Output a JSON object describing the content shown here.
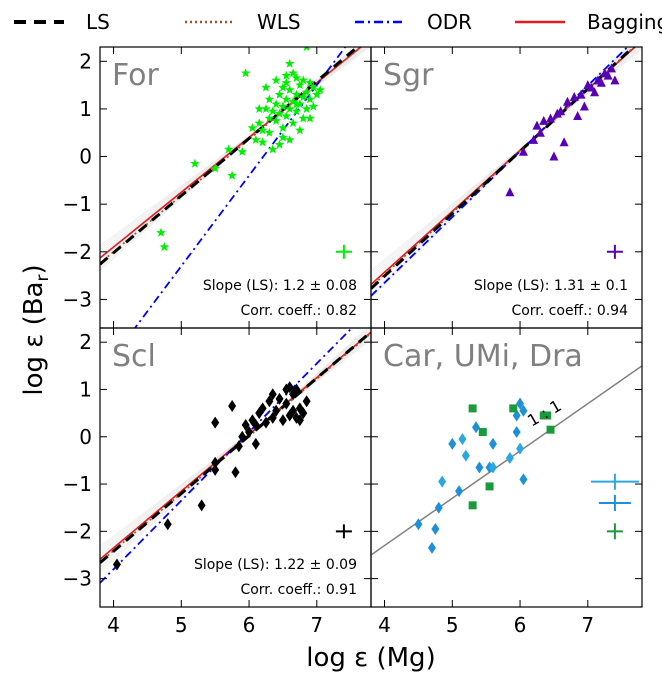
{
  "chart_data": {
    "type": "scatter",
    "xlabel": "log ε (Mg)",
    "ylabel": "log ε (Ba_r)",
    "xlim": [
      3.8,
      7.8
    ],
    "ylim": [
      -3.6,
      2.3
    ],
    "xticks": [
      "4",
      "5",
      "6",
      "7"
    ],
    "yticks": [
      "−3",
      "−2",
      "−1",
      "0",
      "1",
      "2"
    ],
    "legend": {
      "position": "top",
      "entries": [
        {
          "label": "LS",
          "color": "#000000",
          "style": "dashed"
        },
        {
          "label": "WLS",
          "color": "#a0522d",
          "style": "dotted"
        },
        {
          "label": "ODR",
          "color": "#0000ff",
          "style": "dashdot"
        },
        {
          "label": "Bagging",
          "color": "#e41a1c",
          "style": "solid"
        }
      ]
    },
    "panels": [
      {
        "name": "For",
        "color": "#00ee00",
        "marker": "star",
        "stat_slope": "Slope (LS): 1.2 ± 0.08",
        "stat_corr": "Corr. coeff.: 0.82",
        "lines": {
          "ls": [
            1.2,
            -6.82
          ],
          "wls": [
            1.18,
            -6.72
          ],
          "odr": [
            1.9,
            -11.8
          ],
          "bag": [
            1.15,
            -6.5
          ]
        },
        "errbar": {
          "x": 7.4,
          "y": -2.0
        },
        "points": [
          [
            5.2,
            -0.15
          ],
          [
            5.5,
            -0.25
          ],
          [
            5.75,
            -0.4
          ],
          [
            5.9,
            0.1
          ],
          [
            4.7,
            -1.6
          ],
          [
            4.75,
            -1.9
          ],
          [
            5.7,
            0.15
          ],
          [
            6.1,
            0.35
          ],
          [
            6.15,
            0.7
          ],
          [
            6.2,
            0.3
          ],
          [
            6.25,
            1.0
          ],
          [
            6.3,
            0.8
          ],
          [
            6.3,
            1.2
          ],
          [
            6.35,
            0.95
          ],
          [
            6.4,
            1.1
          ],
          [
            6.4,
            0.75
          ],
          [
            6.45,
            1.3
          ],
          [
            6.45,
            0.9
          ],
          [
            6.5,
            1.05
          ],
          [
            6.5,
            0.6
          ],
          [
            6.55,
            1.2
          ],
          [
            6.55,
            0.85
          ],
          [
            6.6,
            1.4
          ],
          [
            6.6,
            1.0
          ],
          [
            6.65,
            0.7
          ],
          [
            6.65,
            1.15
          ],
          [
            6.7,
            1.3
          ],
          [
            6.7,
            0.95
          ],
          [
            6.75,
            1.1
          ],
          [
            6.75,
            1.5
          ],
          [
            6.8,
            1.25
          ],
          [
            6.8,
            0.8
          ],
          [
            6.85,
            1.35
          ],
          [
            6.85,
            1.0
          ],
          [
            6.9,
            1.2
          ],
          [
            6.9,
            1.55
          ],
          [
            6.95,
            1.05
          ],
          [
            7.0,
            1.3
          ],
          [
            7.05,
            1.4
          ],
          [
            6.65,
            1.75
          ],
          [
            6.6,
            1.95
          ],
          [
            6.7,
            1.65
          ],
          [
            6.55,
            1.55
          ],
          [
            6.4,
            1.6
          ],
          [
            6.3,
            0.5
          ],
          [
            6.2,
            0.55
          ],
          [
            6.5,
            0.4
          ],
          [
            6.35,
            0.15
          ],
          [
            6.45,
            0.25
          ],
          [
            6.6,
            0.35
          ],
          [
            5.95,
            1.75
          ],
          [
            6.85,
            2.3
          ],
          [
            6.25,
            1.45
          ],
          [
            6.8,
            1.6
          ],
          [
            6.95,
            1.45
          ],
          [
            6.15,
            1.0
          ],
          [
            6.05,
            0.6
          ],
          [
            6.75,
            0.55
          ],
          [
            6.9,
            0.8
          ],
          [
            6.5,
            1.45
          ],
          [
            6.55,
            1.7
          ],
          [
            6.7,
            1.1
          ]
        ]
      },
      {
        "name": "Sgr",
        "color": "#5a00b4",
        "marker": "triangle",
        "stat_slope": "Slope (LS): 1.31 ± 0.1",
        "stat_corr": "Corr. coeff.: 0.94",
        "lines": {
          "ls": [
            1.31,
            -7.75
          ],
          "wls": [
            1.3,
            -7.68
          ],
          "odr": [
            1.38,
            -8.17
          ],
          "bag": [
            1.28,
            -7.55
          ]
        },
        "errbar": {
          "x": 7.4,
          "y": -2.0
        },
        "points": [
          [
            5.85,
            -0.75
          ],
          [
            6.05,
            0.1
          ],
          [
            6.2,
            0.35
          ],
          [
            6.3,
            0.5
          ],
          [
            6.35,
            0.75
          ],
          [
            6.45,
            0.8
          ],
          [
            6.5,
            0.0
          ],
          [
            6.55,
            0.9
          ],
          [
            6.65,
            0.3
          ],
          [
            6.7,
            1.15
          ],
          [
            6.8,
            1.25
          ],
          [
            6.85,
            0.85
          ],
          [
            6.9,
            1.3
          ],
          [
            6.95,
            1.05
          ],
          [
            7.05,
            1.45
          ],
          [
            7.1,
            1.35
          ],
          [
            7.15,
            1.6
          ],
          [
            7.2,
            1.55
          ],
          [
            7.25,
            1.75
          ],
          [
            7.3,
            1.7
          ],
          [
            7.35,
            1.85
          ],
          [
            7.4,
            1.6
          ],
          [
            6.25,
            0.65
          ],
          [
            6.6,
            0.95
          ],
          [
            7.0,
            1.5
          ]
        ]
      },
      {
        "name": "Scl",
        "color": "#000000",
        "marker": "diamond",
        "stat_slope": "Slope (LS): 1.22 ± 0.09",
        "stat_corr": "Corr. coeff.: 0.91",
        "lines": {
          "ls": [
            1.22,
            -7.3
          ],
          "wls": [
            1.21,
            -7.25
          ],
          "odr": [
            1.45,
            -8.6
          ],
          "bag": [
            1.2,
            -7.15
          ]
        },
        "errbar": {
          "x": 7.4,
          "y": -2.0
        },
        "points": [
          [
            4.05,
            -2.7
          ],
          [
            4.8,
            -1.85
          ],
          [
            5.3,
            -1.45
          ],
          [
            5.5,
            -0.7
          ],
          [
            5.5,
            -0.55
          ],
          [
            5.8,
            -0.75
          ],
          [
            5.5,
            0.3
          ],
          [
            5.85,
            -0.2
          ],
          [
            5.9,
            0.0
          ],
          [
            5.95,
            0.25
          ],
          [
            6.0,
            0.1
          ],
          [
            6.05,
            0.35
          ],
          [
            6.1,
            0.25
          ],
          [
            6.15,
            0.5
          ],
          [
            6.2,
            0.6
          ],
          [
            6.25,
            0.3
          ],
          [
            6.3,
            0.75
          ],
          [
            6.35,
            0.4
          ],
          [
            6.4,
            0.55
          ],
          [
            6.45,
            0.8
          ],
          [
            6.5,
            0.35
          ],
          [
            6.55,
            0.7
          ],
          [
            6.6,
            0.45
          ],
          [
            6.65,
            0.9
          ],
          [
            6.7,
            0.4
          ],
          [
            6.75,
            0.6
          ],
          [
            6.8,
            0.5
          ],
          [
            6.85,
            0.75
          ],
          [
            5.75,
            0.65
          ],
          [
            6.55,
            1.0
          ],
          [
            6.6,
            1.05
          ],
          [
            6.7,
            1.0
          ],
          [
            6.1,
            -0.15
          ],
          [
            6.35,
            0.9
          ],
          [
            6.75,
            0.35
          ],
          [
            6.65,
            0.55
          ]
        ]
      },
      {
        "name": "Car, UMi, Dra",
        "reference_label": "1 : 1",
        "reference_line": [
          1.0,
          -6.3
        ],
        "series": [
          {
            "name": "Car",
            "color": "#1e90d8",
            "marker": "diamond",
            "points": [
              [
                5.35,
                0.2
              ],
              [
                5.6,
                -0.15
              ],
              [
                5.95,
                0.45
              ],
              [
                5.95,
                0.1
              ],
              [
                6.05,
                0.55
              ],
              [
                5.4,
                -0.65
              ],
              [
                5.55,
                -0.65
              ],
              [
                4.8,
                -1.5
              ],
              [
                4.75,
                -1.95
              ],
              [
                4.7,
                -2.35
              ],
              [
                5.0,
                -0.15
              ],
              [
                6.05,
                -0.9
              ],
              [
                4.5,
                -1.85
              ],
              [
                5.1,
                -1.15
              ],
              [
                6.0,
                0.7
              ]
            ]
          },
          {
            "name": "UMi",
            "color": "#2ba8e0",
            "marker": "diamond",
            "points": [
              [
                5.6,
                -0.65
              ],
              [
                5.2,
                -0.4
              ],
              [
                5.15,
                -0.05
              ],
              [
                6.0,
                -0.25
              ],
              [
                4.85,
                -0.95
              ],
              [
                5.85,
                -0.45
              ]
            ]
          },
          {
            "name": "Dra",
            "color": "#1a9a3a",
            "marker": "square",
            "points": [
              [
                5.45,
                0.1
              ],
              [
                5.3,
                0.6
              ],
              [
                5.55,
                -1.05
              ],
              [
                5.3,
                -1.45
              ],
              [
                5.9,
                0.6
              ],
              [
                6.35,
                0.45
              ],
              [
                6.4,
                0.45
              ],
              [
                6.45,
                0.15
              ]
            ]
          }
        ],
        "errbars": [
          {
            "color": "#2ba8e0",
            "x": 7.4,
            "y": -0.95
          },
          {
            "color": "#1e90d8",
            "x": 7.4,
            "y": -1.4
          },
          {
            "color": "#1a9a3a",
            "x": 7.4,
            "y": -2.0
          }
        ]
      }
    ]
  }
}
